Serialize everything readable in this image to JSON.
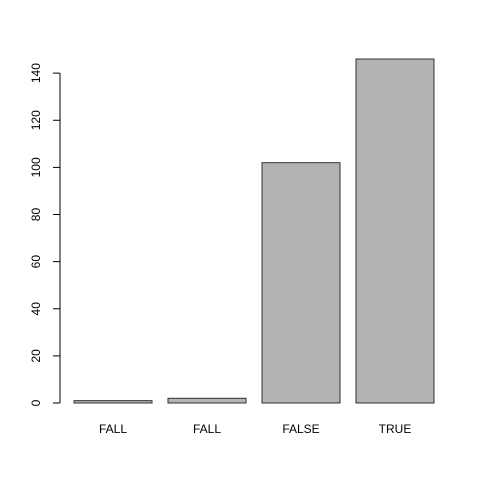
{
  "chart_data": {
    "type": "bar",
    "title": "",
    "xlabel": "",
    "ylabel": "",
    "categories": [
      "FALL",
      "FALL",
      "FALSE",
      "TRUE"
    ],
    "values": [
      1,
      2,
      102,
      146
    ],
    "ylim": [
      0,
      146
    ],
    "yticks": [
      0,
      20,
      40,
      60,
      80,
      100,
      120,
      140
    ],
    "grid": false,
    "legend": "none",
    "colors": {
      "bar_fill": "#b3b3b3",
      "bar_stroke": "#333333",
      "axis": "#000000"
    }
  }
}
